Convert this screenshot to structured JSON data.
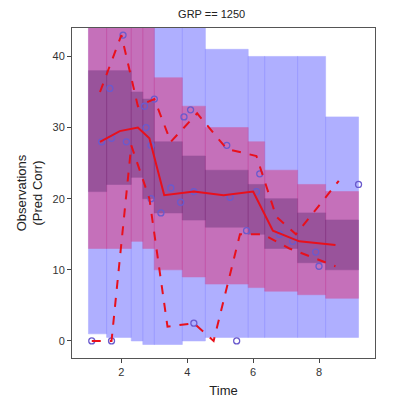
{
  "chart_data": {
    "type": "scatter",
    "title": "GRP == 1250",
    "x_label": "Time",
    "y_label": [
      "Observations",
      "(Pred Corr)"
    ],
    "xlim": [
      0.5,
      9.7
    ],
    "ylim": [
      -2.4,
      44
    ],
    "xticks": [
      2,
      4,
      6,
      8
    ],
    "yticks": [
      0,
      10,
      20,
      30,
      40
    ],
    "grid": false,
    "bins": [
      1.0,
      1.55,
      2.3,
      2.65,
      3.0,
      3.85,
      4.55,
      5.85,
      6.35,
      7.35,
      8.2,
      9.2
    ],
    "bands": [
      {
        "color": "#6e6eff",
        "lower": [
          1.0,
          0.5,
          0.0,
          -0.5,
          -0.5,
          0.0,
          0.5,
          0.5,
          0.5,
          0.5,
          0.5
        ],
        "upper": [
          46,
          46,
          46,
          46,
          46,
          46,
          41,
          40,
          40,
          40,
          31.5
        ]
      },
      {
        "color": "#dc3278",
        "lower": [
          13,
          13,
          14,
          13,
          10,
          9,
          8,
          7.5,
          7,
          6.5,
          6
        ],
        "upper": [
          46,
          46,
          46,
          46,
          37,
          33,
          30,
          28,
          24,
          22,
          21
        ]
      },
      {
        "color": "#5a286e",
        "lower": [
          21,
          22,
          23,
          20,
          18,
          17,
          16,
          15,
          13,
          11,
          10
        ],
        "upper": [
          38,
          38,
          35,
          34,
          28,
          26,
          24,
          22,
          20,
          18,
          17
        ]
      }
    ],
    "series": [
      {
        "type": "scatter",
        "marker": "circle-open",
        "color": "#6a5acd",
        "x": [
          1.1,
          1.4,
          1.65,
          1.7,
          1.7,
          2.05,
          2.15,
          2.7,
          2.75,
          2.9,
          2.9,
          3.0,
          3.2,
          3.5,
          3.8,
          3.9,
          4.1,
          4.2,
          4.2,
          5.2,
          5.3,
          5.5,
          5.8,
          6.1,
          6.2,
          6.8,
          7.2,
          7.9,
          8.0,
          9.2
        ],
        "values": [
          0,
          28,
          35.5,
          28.5,
          0,
          43,
          28,
          33,
          30,
          27.5,
          20,
          34,
          18,
          21.5,
          19.5,
          31.5,
          32.5,
          2.5,
          21,
          27.5,
          20.2,
          0,
          15.5,
          21,
          23.5,
          15,
          14,
          12.5,
          10.5,
          22
        ]
      },
      {
        "type": "line",
        "line_style": "solid",
        "color": "#e8101c",
        "x": [
          1.35,
          1.95,
          2.5,
          2.85,
          3.3,
          4.2,
          5.1,
          6.0,
          6.6,
          7.4,
          8.5
        ],
        "values": [
          28,
          29.5,
          30,
          28.5,
          20.5,
          21,
          20.5,
          21,
          15.5,
          14,
          13.5
        ]
      },
      {
        "type": "line",
        "line_style": "dash",
        "color": "#e8101c",
        "x": [
          1.35,
          2.0,
          2.5,
          3.0,
          3.5,
          4.3,
          5.2,
          6.1,
          6.7,
          7.3,
          8.6
        ],
        "values": [
          35,
          43,
          33,
          34,
          28,
          32,
          27,
          26,
          17.5,
          15,
          22.5
        ]
      },
      {
        "type": "line",
        "line_style": "dash",
        "color": "#e8101c",
        "x": [
          1.1,
          1.7,
          2.3,
          2.85,
          3.4,
          4.2,
          4.8,
          5.6,
          6.3,
          7.1,
          8.5
        ],
        "values": [
          0,
          0,
          27.5,
          20,
          2,
          2.5,
          0,
          15,
          15,
          13,
          10.5
        ]
      }
    ]
  }
}
